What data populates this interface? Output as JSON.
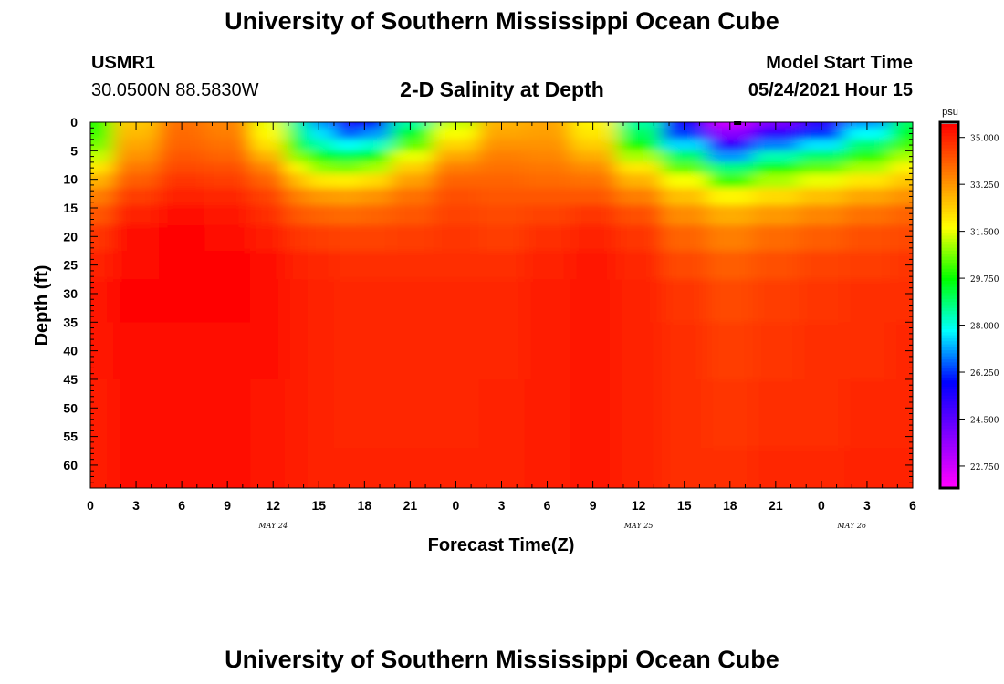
{
  "header": {
    "title_top": "University of Southern Mississippi Ocean Cube",
    "title_bottom": "University of Southern Mississippi Ocean Cube",
    "station_id": "USMR1",
    "coords": "30.0500N  88.5830W",
    "plot_title": "2-D Salinity at Depth",
    "model_start_label": "Model Start Time",
    "model_start_value": "05/24/2021 Hour 15"
  },
  "colors": {
    "scale": [
      "#ff00ff",
      "#8000ff",
      "#0000ff",
      "#00ffff",
      "#00ff00",
      "#ffff00",
      "#ff8000",
      "#ff0000"
    ]
  },
  "chart_data": {
    "type": "heatmap",
    "title": "2-D Salinity at Depth",
    "xlabel": "Forecast Time(Z)",
    "ylabel": "Depth (ft)",
    "x_hours_from_start": [
      0,
      3,
      6,
      9,
      12,
      15,
      18,
      21,
      24,
      27,
      30,
      33,
      36,
      39,
      42,
      45,
      48,
      51,
      54
    ],
    "x_tick_labels": [
      "0",
      "3",
      "6",
      "9",
      "12",
      "15",
      "18",
      "21",
      "0",
      "3",
      "6",
      "9",
      "12",
      "15",
      "18",
      "21",
      "0",
      "3",
      "6"
    ],
    "date_labels": [
      {
        "text": "MAY 24",
        "hour": 12
      },
      {
        "text": "MAY 25",
        "hour": 36
      },
      {
        "text": "MAY 26",
        "hour": 50
      }
    ],
    "xlim": [
      0,
      54
    ],
    "y_ticks": [
      0,
      5,
      10,
      15,
      20,
      25,
      30,
      35,
      40,
      45,
      50,
      55,
      60
    ],
    "ylim": [
      0,
      64
    ],
    "colorbar": {
      "unit": "psu",
      "min": 22,
      "max": 35.5,
      "ticks": [
        "35.000",
        "33.250",
        "31.500",
        "29.750",
        "28.000",
        "26.250",
        "24.500",
        "22.750"
      ]
    },
    "depth_profile_ft": [
      0,
      2,
      4,
      6,
      8,
      10,
      13,
      16,
      20,
      25,
      30,
      40,
      50,
      64
    ],
    "hour_columns": [
      0,
      3,
      6,
      9,
      12,
      13.5,
      15,
      17,
      18.5,
      21,
      24,
      27,
      30,
      33,
      36,
      39,
      42,
      45,
      48,
      51,
      54
    ],
    "salinity_psu": [
      [
        30.0,
        30.2,
        30.6,
        31.2,
        32.0,
        32.8,
        33.6,
        34.2,
        34.7,
        35.0,
        35.2,
        35.2,
        35.1,
        35.1
      ],
      [
        32.5,
        32.7,
        33.0,
        33.3,
        33.7,
        34.1,
        34.6,
        35.0,
        35.3,
        35.4,
        35.5,
        35.4,
        35.3,
        35.3
      ],
      [
        33.8,
        33.9,
        34.0,
        34.2,
        34.4,
        34.7,
        35.0,
        35.3,
        35.5,
        35.5,
        35.5,
        35.4,
        35.3,
        35.3
      ],
      [
        33.5,
        33.6,
        33.8,
        34.0,
        34.3,
        34.6,
        34.9,
        35.2,
        35.4,
        35.5,
        35.5,
        35.4,
        35.3,
        35.3
      ],
      [
        31.5,
        31.7,
        32.1,
        32.8,
        33.5,
        34.0,
        34.5,
        34.8,
        35.1,
        35.3,
        35.3,
        35.3,
        35.2,
        35.2
      ],
      [
        28.5,
        29.0,
        29.8,
        30.8,
        31.8,
        32.7,
        33.6,
        34.2,
        34.7,
        35.0,
        35.1,
        35.1,
        35.1,
        35.1
      ],
      [
        27.0,
        27.6,
        28.4,
        29.6,
        30.8,
        32.0,
        33.2,
        34.0,
        34.6,
        34.9,
        35.0,
        35.0,
        35.0,
        35.0
      ],
      [
        25.5,
        26.5,
        27.8,
        29.2,
        30.6,
        31.9,
        33.1,
        33.9,
        34.5,
        34.8,
        34.9,
        34.9,
        34.9,
        35.0
      ],
      [
        26.0,
        27.0,
        28.2,
        29.6,
        31.0,
        32.2,
        33.3,
        34.0,
        34.5,
        34.8,
        34.9,
        34.9,
        34.9,
        35.0
      ],
      [
        28.5,
        29.4,
        30.4,
        31.5,
        32.4,
        33.1,
        33.8,
        34.2,
        34.6,
        34.8,
        34.9,
        34.9,
        34.9,
        35.0
      ],
      [
        31.2,
        31.6,
        32.3,
        33.0,
        33.6,
        34.0,
        34.3,
        34.5,
        34.7,
        34.8,
        34.9,
        34.9,
        34.9,
        35.0
      ],
      [
        32.8,
        33.0,
        33.3,
        33.6,
        33.8,
        34.0,
        34.2,
        34.4,
        34.6,
        34.8,
        34.9,
        34.9,
        35.0,
        35.0
      ],
      [
        33.0,
        33.1,
        33.3,
        33.5,
        33.7,
        33.9,
        34.2,
        34.5,
        34.8,
        35.0,
        35.1,
        35.1,
        35.1,
        35.1
      ],
      [
        31.8,
        32.0,
        32.4,
        32.9,
        33.4,
        33.8,
        34.2,
        34.7,
        35.0,
        35.2,
        35.2,
        35.2,
        35.2,
        35.2
      ],
      [
        28.5,
        29.0,
        29.8,
        31.0,
        32.0,
        32.8,
        33.6,
        34.3,
        34.7,
        34.9,
        35.0,
        35.0,
        35.0,
        35.0
      ],
      [
        25.5,
        26.3,
        27.5,
        29.0,
        30.4,
        31.6,
        32.6,
        33.4,
        34.0,
        34.4,
        34.7,
        34.8,
        34.8,
        34.8
      ],
      [
        22.8,
        23.8,
        25.3,
        27.0,
        28.8,
        30.2,
        31.8,
        32.9,
        33.6,
        34.1,
        34.4,
        34.6,
        34.7,
        34.8
      ],
      [
        24.0,
        25.2,
        26.8,
        28.4,
        29.8,
        31.0,
        32.2,
        33.2,
        33.9,
        34.3,
        34.6,
        34.7,
        34.8,
        34.9
      ],
      [
        25.2,
        26.2,
        27.6,
        29.0,
        30.4,
        31.5,
        32.6,
        33.5,
        34.1,
        34.5,
        34.7,
        34.8,
        34.8,
        34.9
      ],
      [
        27.0,
        27.8,
        28.9,
        30.0,
        31.0,
        32.0,
        33.0,
        33.8,
        34.3,
        34.6,
        34.8,
        34.8,
        34.9,
        35.0
      ],
      [
        29.0,
        29.5,
        30.2,
        31.0,
        31.8,
        32.5,
        33.3,
        34.0,
        34.4,
        34.7,
        34.8,
        34.9,
        34.9,
        35.0
      ]
    ],
    "markers": [
      {
        "hour": 42.5,
        "depth_ft": 0
      }
    ]
  }
}
